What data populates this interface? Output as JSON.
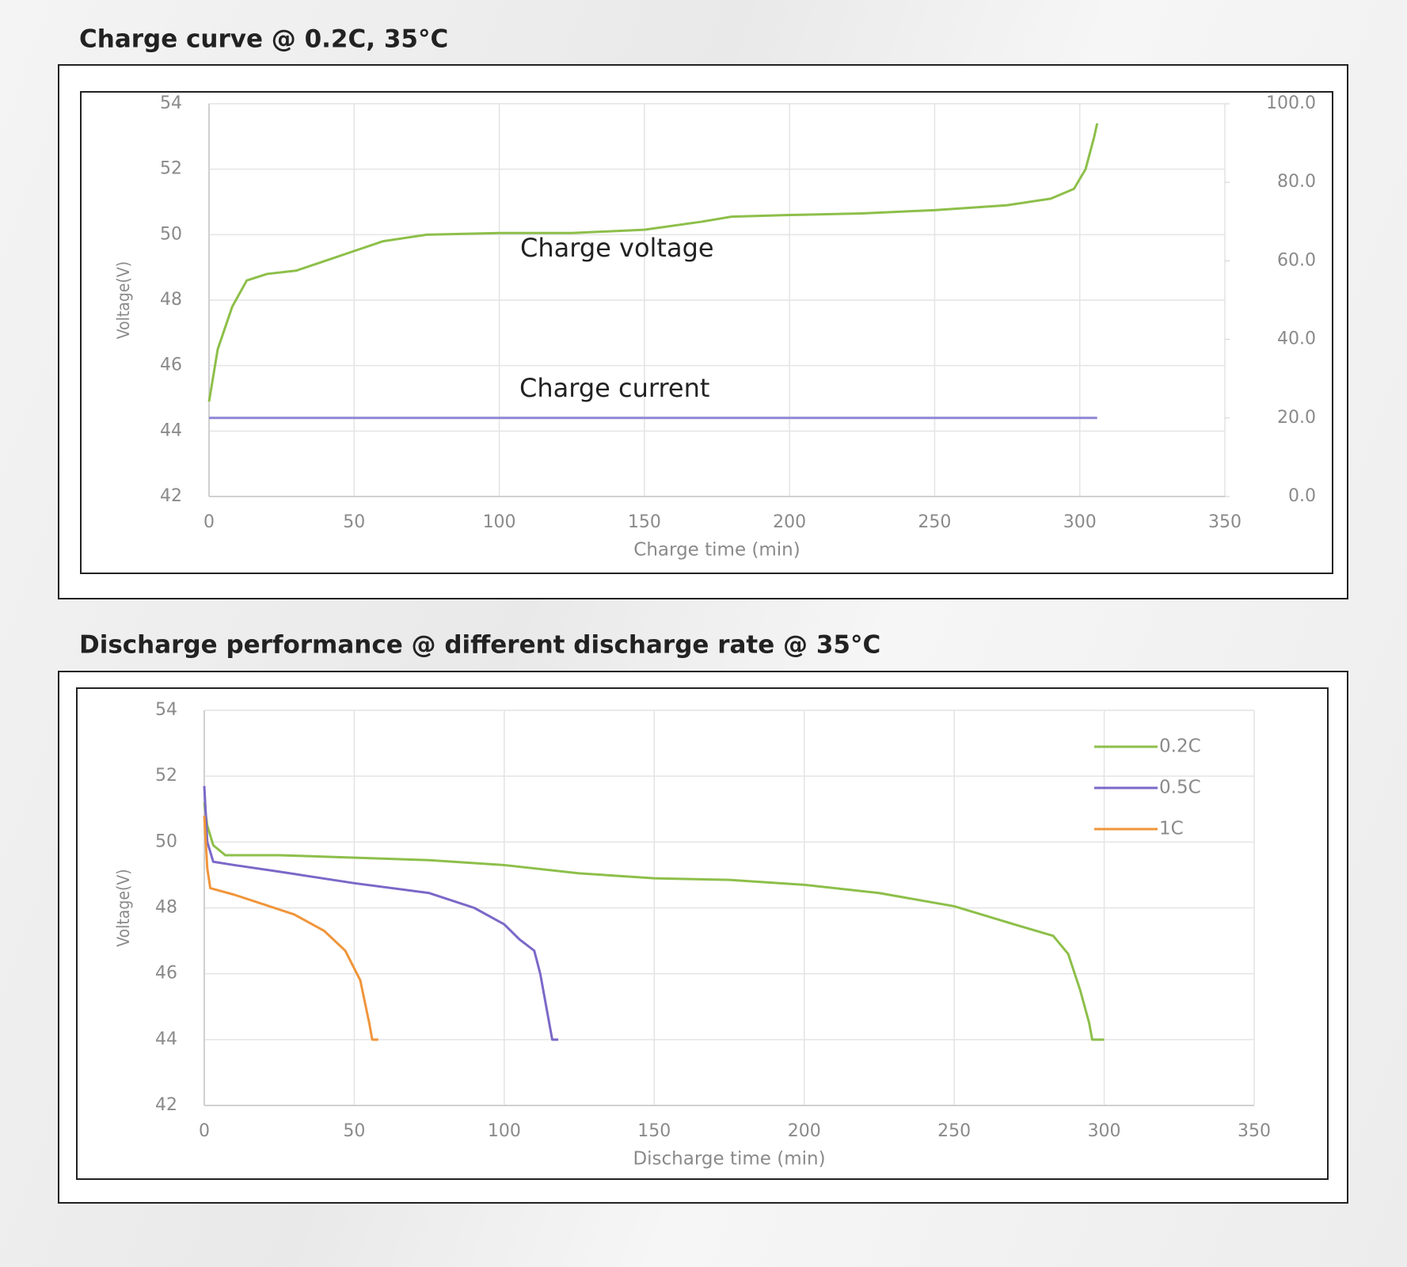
{
  "chart_data": [
    {
      "type": "line",
      "title": "Charge curve @ 0.2C, 35°C",
      "x_label": "Charge time (min)",
      "y_label": "Voltage(V)",
      "xlim": [
        0,
        350
      ],
      "xticks": [
        0,
        50,
        100,
        150,
        200,
        250,
        300,
        350
      ],
      "ylim": [
        42,
        54
      ],
      "yticks": [
        42,
        44,
        46,
        48,
        50,
        52,
        54
      ],
      "y2lim": [
        0,
        100
      ],
      "y2ticks": [
        {
          "value": 0,
          "label": "0.0"
        },
        {
          "value": 20,
          "label": "20.0"
        },
        {
          "value": 40,
          "label": "40.0"
        },
        {
          "value": 60,
          "label": "60.0"
        },
        {
          "value": 80,
          "label": "80.0"
        },
        {
          "value": 100,
          "label": "100.0"
        }
      ],
      "grid": true,
      "legend": "inline",
      "series": [
        {
          "name": "Charge voltage",
          "color": "#8dbf4a",
          "x": [
            0,
            3,
            8,
            13,
            20,
            30,
            40,
            50,
            60,
            75,
            100,
            125,
            150,
            170,
            180,
            200,
            225,
            250,
            275,
            290,
            298,
            302,
            305,
            306
          ],
          "values": [
            44.9,
            46.5,
            47.8,
            48.6,
            48.8,
            48.9,
            49.2,
            49.5,
            49.8,
            50.0,
            50.05,
            50.05,
            50.15,
            50.4,
            50.55,
            50.6,
            50.65,
            50.75,
            50.9,
            51.1,
            51.4,
            52.0,
            53.0,
            53.4
          ]
        },
        {
          "name": "Charge current",
          "color": "#8f86d6",
          "axis": "y2",
          "x": [
            0,
            306
          ],
          "values": [
            20,
            20
          ]
        }
      ]
    },
    {
      "type": "line",
      "title": "Discharge performance @ different discharge rate @ 35°C",
      "x_label": "Discharge time (min)",
      "y_label": "Voltage(V)",
      "xlim": [
        0,
        350
      ],
      "xticks": [
        0,
        50,
        100,
        150,
        200,
        250,
        300,
        350
      ],
      "ylim": [
        42,
        54
      ],
      "yticks": [
        42,
        44,
        46,
        48,
        50,
        52,
        54
      ],
      "grid": true,
      "legend": "top-right",
      "series": [
        {
          "name": "0.2C",
          "color": "#8dbf4a",
          "x": [
            0,
            1,
            3,
            7,
            25,
            75,
            100,
            125,
            150,
            175,
            200,
            225,
            250,
            270,
            283,
            288,
            292,
            295,
            296,
            300
          ],
          "values": [
            51.2,
            50.5,
            49.9,
            49.6,
            49.6,
            49.45,
            49.3,
            49.05,
            48.9,
            48.85,
            48.7,
            48.45,
            48.05,
            47.5,
            47.15,
            46.6,
            45.5,
            44.5,
            44.0,
            44.0
          ]
        },
        {
          "name": "0.5C",
          "color": "#7b68c8",
          "x": [
            0,
            1,
            3,
            10,
            25,
            50,
            75,
            90,
            100,
            105,
            110,
            112,
            114,
            116,
            118
          ],
          "values": [
            51.7,
            50.0,
            49.4,
            49.3,
            49.1,
            48.75,
            48.45,
            48.0,
            47.5,
            47.05,
            46.7,
            46.0,
            45.0,
            44.0,
            44.0
          ]
        },
        {
          "name": "1C",
          "color": "#f0953a",
          "x": [
            0,
            1,
            2,
            10,
            20,
            30,
            40,
            47,
            52,
            55,
            56,
            58
          ],
          "values": [
            50.8,
            49.2,
            48.6,
            48.4,
            48.1,
            47.8,
            47.3,
            46.7,
            45.8,
            44.5,
            44.0,
            44.0
          ]
        }
      ]
    }
  ]
}
